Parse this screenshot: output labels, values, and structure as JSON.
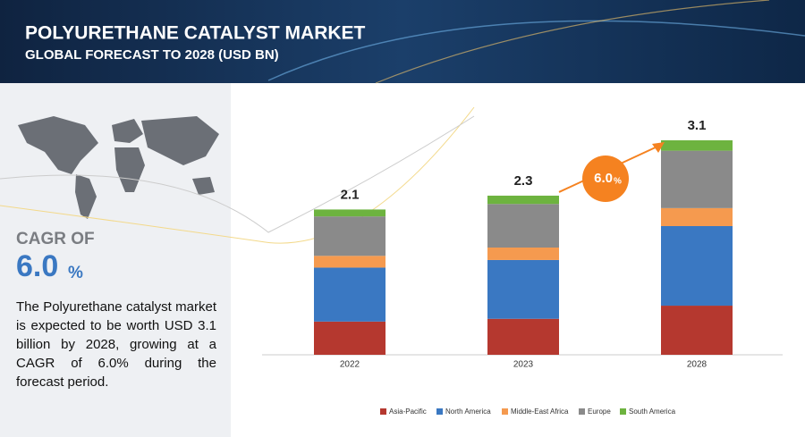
{
  "header": {
    "title": "POLYURETHANE CATALYST MARKET",
    "subtitle": "GLOBAL FORECAST TO 2028 (USD BN)"
  },
  "side": {
    "cagr_label": "CAGR OF",
    "cagr_value": "6.0",
    "cagr_unit": "%",
    "text": "The Polyurethane catalyst market is expected to be worth USD 3.1 billion by 2028, growing at a CAGR of 6.0% during the forecast period."
  },
  "chart_data": {
    "type": "stacked_bar",
    "categories": [
      "2022",
      "2023",
      "2028"
    ],
    "totals": [
      2.1,
      2.3,
      3.1
    ],
    "badge": {
      "value": "6.0",
      "unit": "%"
    },
    "series": [
      {
        "name": "Asia-Pacific",
        "color": "#b5382f",
        "values": [
          0.48,
          0.52,
          0.71
        ]
      },
      {
        "name": "North America",
        "color": "#3a78c2",
        "values": [
          0.78,
          0.85,
          1.15
        ]
      },
      {
        "name": "Middle-East Africa",
        "color": "#f59a4f",
        "values": [
          0.17,
          0.18,
          0.26
        ]
      },
      {
        "name": "Europe",
        "color": "#8a8a8a",
        "values": [
          0.57,
          0.63,
          0.83
        ]
      },
      {
        "name": "South America",
        "color": "#6db33f",
        "values": [
          0.1,
          0.12,
          0.15
        ]
      }
    ]
  }
}
